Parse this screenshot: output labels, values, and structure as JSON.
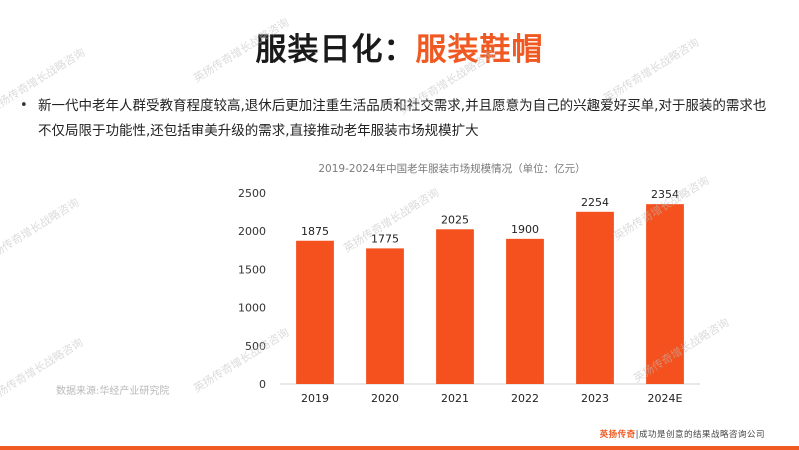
{
  "slide": {
    "title_part1": "服装日化：",
    "title_part2": "服装鞋帽",
    "bullet_marker": "•",
    "bullet_text": "新一代中老年人群受教育程度较高,退休后更加注重生活品质和社交需求,并且愿意为自己的兴趣爱好买单,对于服装的需求也不仅局限于功能性,还包括审美升级的需求,直接推动老年服装市场规模扩大",
    "source": "数据来源:华经产业研究院",
    "watermark": "英扬传奇增长战略咨询",
    "footer_brand": "英扬传奇",
    "footer_rest": "|成功是创意的结果战略咨询公司"
  },
  "colors": {
    "accent": "#f05a22",
    "bar": "#f4511e"
  },
  "chart_data": {
    "type": "bar",
    "title": "2019-2024年中国老年服装市场规模情况（单位：亿元）",
    "categories": [
      "2019",
      "2020",
      "2021",
      "2022",
      "2023",
      "2024E"
    ],
    "values": [
      1875,
      1775,
      2025,
      1900,
      2254,
      2354
    ],
    "data_labels": [
      "1875",
      "1775",
      "2025",
      "1900",
      "2254",
      "2354"
    ],
    "ylim": [
      0,
      2500
    ],
    "yticks": [
      0,
      500,
      1000,
      1500,
      2000,
      2500
    ],
    "xlabel": "",
    "ylabel": "",
    "grid": false,
    "legend": "none"
  }
}
